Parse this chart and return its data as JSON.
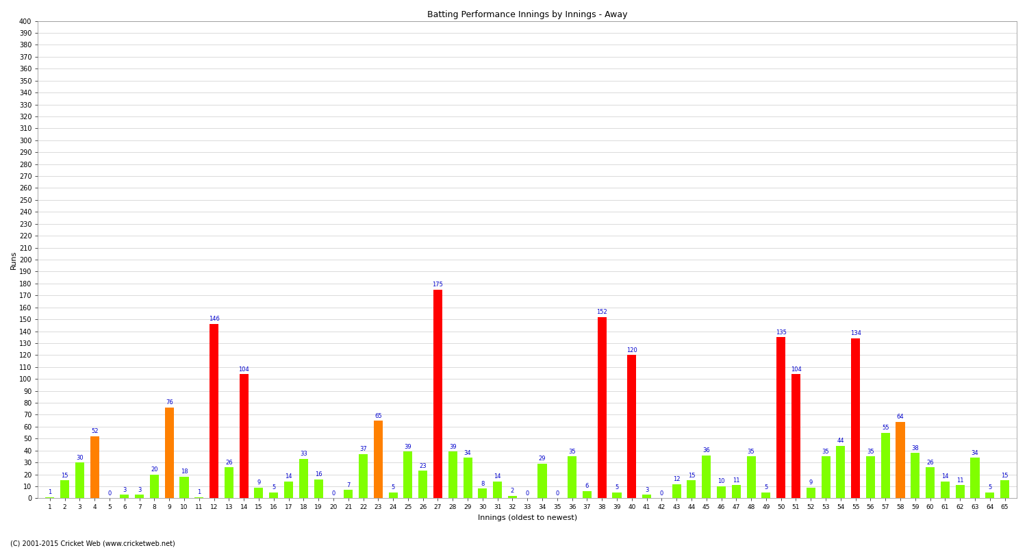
{
  "title": "Batting Performance Innings by Innings - Away",
  "xlabel": "Innings (oldest to newest)",
  "ylabel": "Runs",
  "footer": "(C) 2001-2015 Cricket Web (www.cricketweb.net)",
  "ylim": [
    0,
    400
  ],
  "yticks": [
    0,
    10,
    20,
    30,
    40,
    50,
    60,
    70,
    80,
    90,
    100,
    110,
    120,
    130,
    140,
    150,
    160,
    170,
    180,
    190,
    200,
    210,
    220,
    230,
    240,
    250,
    260,
    270,
    280,
    290,
    300,
    310,
    320,
    330,
    340,
    350,
    360,
    370,
    380,
    390,
    400
  ],
  "innings": [
    1,
    2,
    3,
    4,
    5,
    6,
    7,
    8,
    9,
    10,
    11,
    12,
    13,
    14,
    15,
    16,
    17,
    18,
    19,
    20,
    21,
    22,
    23,
    24,
    25,
    26,
    27,
    28,
    29,
    30,
    31,
    32,
    33,
    34,
    35,
    36,
    37,
    38,
    39,
    40,
    41,
    42,
    43,
    44,
    45,
    46,
    47,
    48,
    49,
    50,
    51,
    52,
    53,
    54,
    55,
    56,
    57,
    58,
    59,
    60,
    61,
    62,
    63,
    64,
    65
  ],
  "runs": [
    1,
    15,
    30,
    52,
    0,
    3,
    3,
    20,
    76,
    18,
    1,
    146,
    26,
    104,
    9,
    5,
    14,
    33,
    16,
    0,
    7,
    37,
    65,
    5,
    39,
    23,
    175,
    39,
    34,
    8,
    14,
    2,
    0,
    29,
    0,
    35,
    6,
    152,
    5,
    120,
    3,
    0,
    12,
    15,
    36,
    10,
    11,
    35,
    5,
    135,
    104,
    9,
    35,
    44,
    134,
    35,
    55,
    64,
    38,
    26,
    14,
    11,
    34,
    5,
    15
  ],
  "colors": [
    "#80ff00",
    "#80ff00",
    "#80ff00",
    "#ff8000",
    "#80ff00",
    "#80ff00",
    "#80ff00",
    "#80ff00",
    "#ff8000",
    "#80ff00",
    "#80ff00",
    "#ff0000",
    "#80ff00",
    "#ff0000",
    "#80ff00",
    "#80ff00",
    "#80ff00",
    "#80ff00",
    "#80ff00",
    "#80ff00",
    "#80ff00",
    "#80ff00",
    "#ff8000",
    "#80ff00",
    "#80ff00",
    "#80ff00",
    "#ff0000",
    "#80ff00",
    "#80ff00",
    "#80ff00",
    "#80ff00",
    "#80ff00",
    "#80ff00",
    "#80ff00",
    "#80ff00",
    "#80ff00",
    "#80ff00",
    "#ff0000",
    "#80ff00",
    "#ff0000",
    "#80ff00",
    "#80ff00",
    "#80ff00",
    "#80ff00",
    "#80ff00",
    "#80ff00",
    "#80ff00",
    "#80ff00",
    "#80ff00",
    "#ff0000",
    "#ff0000",
    "#80ff00",
    "#80ff00",
    "#80ff00",
    "#ff0000",
    "#80ff00",
    "#80ff00",
    "#ff8000",
    "#80ff00",
    "#80ff00",
    "#80ff00",
    "#80ff00",
    "#80ff00",
    "#80ff00",
    "#80ff00"
  ],
  "bg_color": "#ffffff",
  "grid_color": "#cccccc",
  "title_fontsize": 9,
  "label_fontsize": 8,
  "tick_fontsize": 7,
  "value_fontsize": 6.0,
  "value_color": "#0000cc",
  "footer_fontsize": 7
}
